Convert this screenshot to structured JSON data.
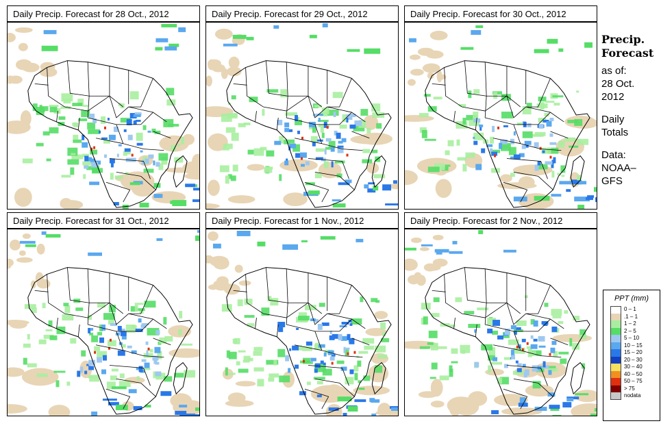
{
  "panels": [
    {
      "title": "Daily Precip. Forecast for  28 Oct., 2012"
    },
    {
      "title": "Daily Precip. Forecast for  29 Oct., 2012"
    },
    {
      "title": "Daily Precip. Forecast for  30 Oct., 2012"
    },
    {
      "title": "Daily Precip. Forecast for  31 Oct., 2012"
    },
    {
      "title": "Daily Precip. Forecast for   1 Nov., 2012"
    },
    {
      "title": "Daily Precip. Forecast for   2 Nov., 2012"
    }
  ],
  "side": {
    "heading_line1": "Precip.",
    "heading_line2": "Forecast",
    "asof_label": "as of:",
    "date_line1": "28 Oct.",
    "date_line2": "2012",
    "daily_line1": "Daily",
    "daily_line2": "Totals",
    "data_label": "Data:",
    "source_line1": "NOAA–",
    "source_line2": "GFS"
  },
  "legend": {
    "title": "PPT (mm)",
    "items": [
      {
        "label": "0 – 1",
        "color": "#ffffff"
      },
      {
        "label": ".1 – 1",
        "color": "#e8d5b5"
      },
      {
        "label": "1 – 2",
        "color": "#a8eea0"
      },
      {
        "label": "2 – 5",
        "color": "#55dd66"
      },
      {
        "label": "5 – 10",
        "color": "#9ec8ef"
      },
      {
        "label": "10 – 15",
        "color": "#5aa8ee"
      },
      {
        "label": "15 – 20",
        "color": "#2a78e8"
      },
      {
        "label": "20 – 30",
        "color": "#1240c0"
      },
      {
        "label": "30 – 40",
        "color": "#f8e060"
      },
      {
        "label": "40 – 50",
        "color": "#f09020"
      },
      {
        "label": "50 – 75",
        "color": "#e03010"
      },
      {
        "label": "> 75",
        "color": "#800000"
      },
      {
        "label": "nodata",
        "color": "#c8c8c8"
      }
    ]
  }
}
